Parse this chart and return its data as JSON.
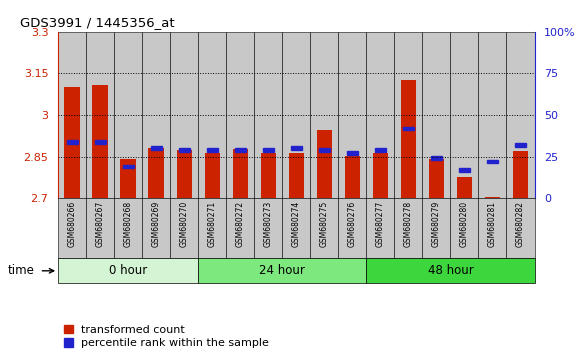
{
  "title": "GDS3991 / 1445356_at",
  "samples": [
    "GSM680266",
    "GSM680267",
    "GSM680268",
    "GSM680269",
    "GSM680270",
    "GSM680271",
    "GSM680272",
    "GSM680273",
    "GSM680274",
    "GSM680275",
    "GSM680276",
    "GSM680277",
    "GSM680278",
    "GSM680279",
    "GSM680280",
    "GSM680281",
    "GSM680282"
  ],
  "transformed_count": [
    3.1,
    3.11,
    2.843,
    2.88,
    2.874,
    2.864,
    2.878,
    2.864,
    2.864,
    2.945,
    2.852,
    2.862,
    3.128,
    2.843,
    2.775,
    2.705,
    2.872
  ],
  "percentile_rank": [
    34,
    34,
    19,
    30,
    29,
    29,
    29,
    29,
    30,
    29,
    27,
    29,
    42,
    24,
    17,
    22,
    32
  ],
  "ylim_left": [
    2.7,
    3.3
  ],
  "ylim_right": [
    0,
    100
  ],
  "yticks_left": [
    2.7,
    2.85,
    3.0,
    3.15,
    3.3
  ],
  "yticks_right": [
    0,
    25,
    50,
    75,
    100
  ],
  "ytick_labels_left": [
    "2.7",
    "2.85",
    "3",
    "3.15",
    "3.3"
  ],
  "ytick_labels_right": [
    "0",
    "25",
    "50",
    "75",
    "100%"
  ],
  "hlines": [
    2.85,
    3.0,
    3.15
  ],
  "groups": [
    {
      "label": "0 hour",
      "start": 0,
      "end": 5,
      "color": "#d4f5d4"
    },
    {
      "label": "24 hour",
      "start": 5,
      "end": 11,
      "color": "#7de87d"
    },
    {
      "label": "48 hour",
      "start": 11,
      "end": 17,
      "color": "#3dd63d"
    }
  ],
  "bar_color_red": "#cc2200",
  "bar_color_blue": "#2222cc",
  "bar_width": 0.55,
  "bar_base": 2.7,
  "col_bg_color": "#c8c8c8",
  "left_axis_color": "#cc2200",
  "right_axis_color": "#2222cc",
  "xlabel": "time",
  "legend_red": "transformed count",
  "legend_blue": "percentile rank within the sample"
}
